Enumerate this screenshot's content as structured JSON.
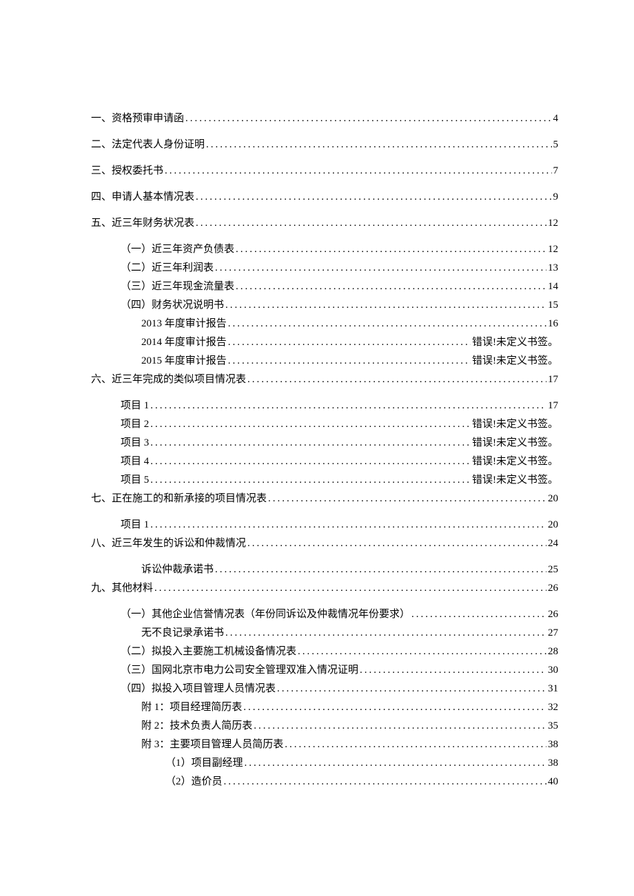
{
  "toc": [
    {
      "level": 0,
      "gap": "top",
      "label": "一、资格预审申请函",
      "page": "4"
    },
    {
      "level": 0,
      "gap": "top",
      "label": "二、法定代表人身份证明",
      "page": "5"
    },
    {
      "level": 0,
      "gap": "top",
      "label": "三、授权委托书",
      "page": "7"
    },
    {
      "level": 0,
      "gap": "top",
      "label": "四、申请人基本情况表",
      "page": "9"
    },
    {
      "level": 0,
      "gap": "top",
      "label": "五、近三年财务状况表",
      "page": "12"
    },
    {
      "level": 1,
      "gap": "sub",
      "label": "（一）近三年资产负债表",
      "page": "12"
    },
    {
      "level": 1,
      "gap": "sub",
      "label": "（二）近三年利润表",
      "page": "13"
    },
    {
      "level": 1,
      "gap": "sub",
      "label": "（三）近三年现金流量表",
      "page": "14"
    },
    {
      "level": 1,
      "gap": "sub",
      "label": "（四）财务状况说明书",
      "page": "15"
    },
    {
      "level": 2,
      "gap": "sub",
      "label": "2013 年度审计报告",
      "page": "16"
    },
    {
      "level": 2,
      "gap": "sub",
      "label": "2014 年度审计报告",
      "page": "错误!未定义书签。"
    },
    {
      "level": 2,
      "gap": "sub",
      "label": "2015 年度审计报告",
      "page": "错误!未定义书签。"
    },
    {
      "level": 0,
      "gap": "top",
      "label": "六、近三年完成的类似项目情况表",
      "page": "17"
    },
    {
      "level": 1,
      "gap": "sub",
      "label": "项目 1",
      "page": "17"
    },
    {
      "level": 1,
      "gap": "sub",
      "label": "项目 2",
      "page": "错误!未定义书签。"
    },
    {
      "level": 1,
      "gap": "sub",
      "label": "项目 3",
      "page": "错误!未定义书签。"
    },
    {
      "level": 1,
      "gap": "sub",
      "label": "项目 4",
      "page": "错误!未定义书签。"
    },
    {
      "level": 1,
      "gap": "sub",
      "label": "项目 5",
      "page": "错误!未定义书签。"
    },
    {
      "level": 0,
      "gap": "top",
      "label": "七、正在施工的和新承接的项目情况表",
      "page": "20"
    },
    {
      "level": 1,
      "gap": "sub",
      "label": "项目 1",
      "page": "20"
    },
    {
      "level": 0,
      "gap": "top",
      "label": "八、近三年发生的诉讼和仲裁情况",
      "page": "24"
    },
    {
      "level": 2,
      "gap": "sub",
      "label": "诉讼仲裁承诺书",
      "page": "25"
    },
    {
      "level": 0,
      "gap": "top",
      "label": "九、其他材料",
      "page": "26"
    },
    {
      "level": 1,
      "gap": "sub",
      "label": "（一）其他企业信誉情况表（年份同诉讼及仲裁情况年份要求）",
      "page": "26"
    },
    {
      "level": 2,
      "gap": "sub",
      "label": "无不良记录承诺书",
      "page": "27"
    },
    {
      "level": 1,
      "gap": "sub",
      "label": "（二）拟投入主要施工机械设备情况表",
      "page": "28"
    },
    {
      "level": 1,
      "gap": "sub",
      "label": "（三）国网北京市电力公司安全管理双准入情况证明",
      "page": "30"
    },
    {
      "level": 1,
      "gap": "sub",
      "label": "（四）拟投入项目管理人员情况表",
      "page": "31"
    },
    {
      "level": 2,
      "gap": "sub",
      "label": "附 1：项目经理简历表",
      "page": "32"
    },
    {
      "level": 2,
      "gap": "sub",
      "label": "附 2：技术负责人简历表",
      "page": "35"
    },
    {
      "level": 2,
      "gap": "sub",
      "label": "附 3：主要项目管理人员简历表",
      "page": "38"
    },
    {
      "level": 3,
      "gap": "sub",
      "label": "（1）项目副经理",
      "page": "38"
    },
    {
      "level": 3,
      "gap": "sub",
      "label": "（2）造价员",
      "page": "40"
    }
  ],
  "colors": {
    "text": "#000000",
    "background": "#ffffff"
  },
  "fontsize_pt": 11
}
